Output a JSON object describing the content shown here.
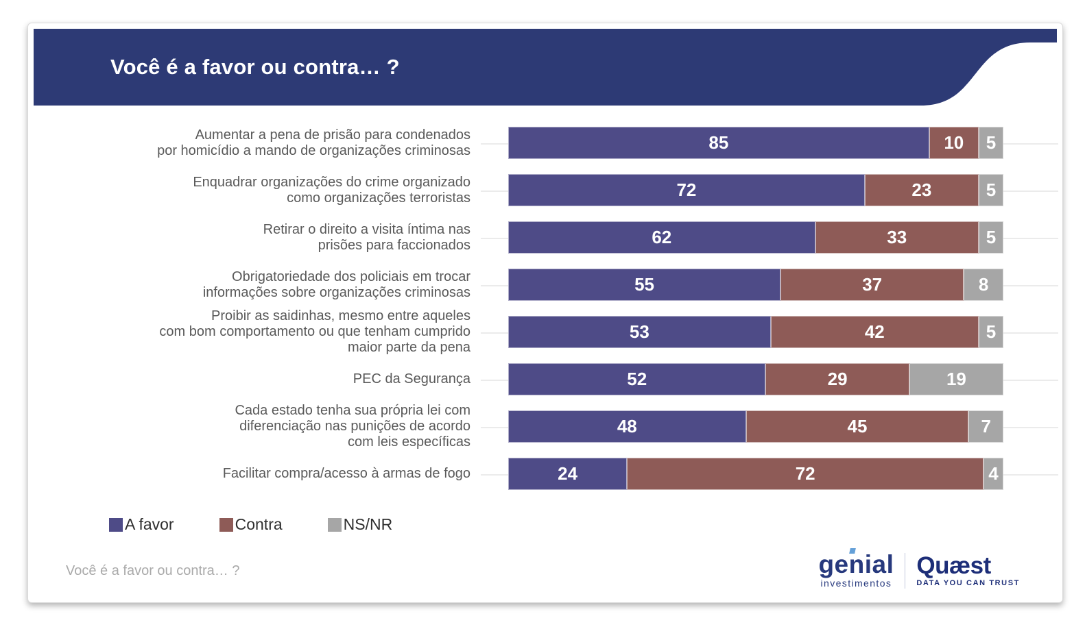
{
  "header": {
    "title": "Você é a favor ou contra… ?"
  },
  "chart_data": {
    "type": "bar",
    "orientation": "horizontal",
    "stacked": true,
    "unit": "percent",
    "xlim": [
      0,
      100
    ],
    "title": "Você é a favor ou contra… ?",
    "legend_position": "bottom-left",
    "grid": "faint horizontal line per row",
    "categories": [
      "Aumentar a pena de prisão para condenados\npor homicídio a mando de organizações criminosas",
      "Enquadrar organizações do crime organizado\ncomo organizações terroristas",
      "Retirar o direito a visita íntima nas\nprisões para faccionados",
      "Obrigatoriedade dos policiais em trocar\ninformações sobre organizações criminosas",
      "Proibir as saidinhas, mesmo entre aqueles\ncom bom comportamento ou que tenham cumprido\nmaior parte da pena",
      "PEC da Segurança",
      "Cada estado tenha sua própria lei com\ndiferenciação nas punições de acordo\ncom leis específicas",
      "Facilitar compra/acesso à armas de fogo"
    ],
    "series": [
      {
        "name": "A favor",
        "color": "#4e4b87",
        "values": [
          85,
          72,
          62,
          55,
          53,
          52,
          48,
          24
        ]
      },
      {
        "name": "Contra",
        "color": "#8e5b57",
        "values": [
          10,
          23,
          33,
          37,
          42,
          29,
          45,
          72
        ]
      },
      {
        "name": "NS/NR",
        "color": "#a6a6a6",
        "values": [
          5,
          5,
          5,
          8,
          5,
          19,
          7,
          4
        ]
      }
    ]
  },
  "colors": {
    "header_bg": "#2d3a75",
    "a_favor": "#4e4b87",
    "contra": "#8e5b57",
    "ns_nr": "#a6a6a6"
  },
  "footer": {
    "note": "Você é a favor ou contra… ?",
    "genial": {
      "name": "genial",
      "subtitle": "investimentos"
    },
    "quaest": {
      "name": "Quæst",
      "tagline": "DATA YOU CAN TRUST"
    }
  }
}
